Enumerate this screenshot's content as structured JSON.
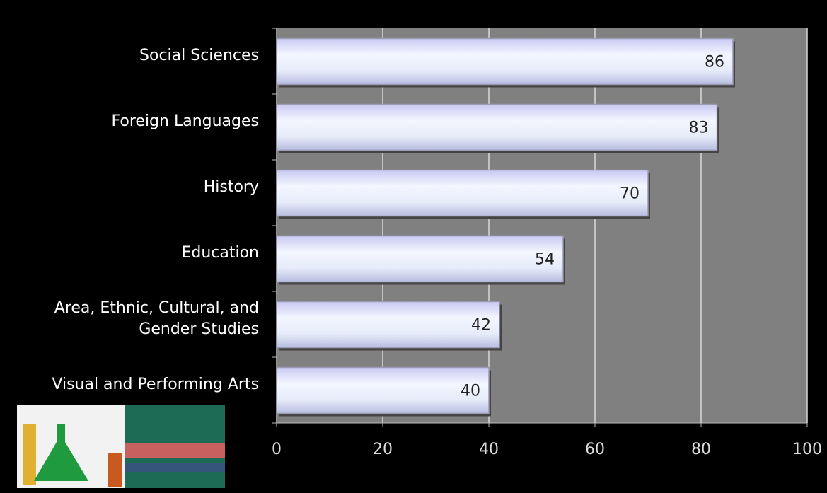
{
  "chart_data": {
    "type": "bar",
    "orientation": "horizontal",
    "categories": [
      "Social Sciences",
      "Foreign Languages",
      "History",
      "Education",
      "Area, Ethnic, Cultural, and Gender Studies",
      "Visual and Performing Arts"
    ],
    "values": [
      86,
      83,
      70,
      54,
      42,
      40
    ],
    "color": "#e4e6fb",
    "xlim": [
      0,
      100
    ],
    "xticks": [
      0,
      20,
      40,
      60,
      80,
      100
    ],
    "grid": true
  }
}
